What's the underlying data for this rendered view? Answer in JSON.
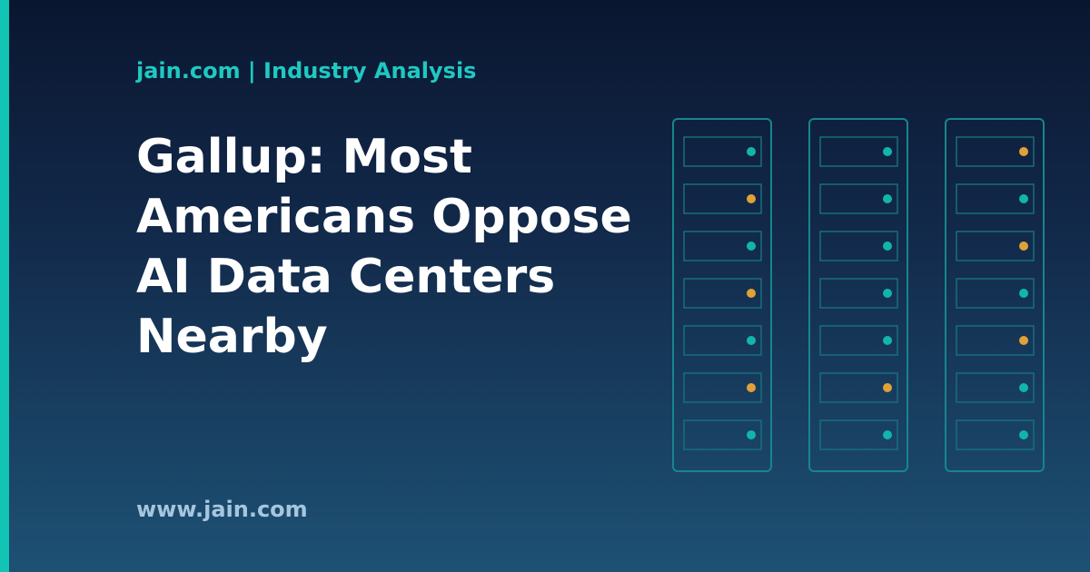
{
  "header": {
    "kicker": "jain.com | Industry Analysis"
  },
  "title_lines": [
    "Gallup: Most",
    "Americans Oppose",
    "AI Data Centers",
    "Nearby"
  ],
  "footer": {
    "url": "www.jain.com"
  }
}
